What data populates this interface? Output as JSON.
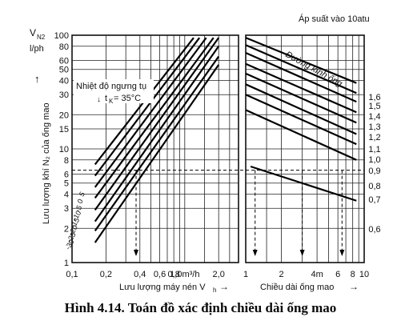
{
  "caption": "Hình 4.14. Toán đồ xác định chiều dài ống mao",
  "chart_data": {
    "type": "line",
    "y_axis": {
      "label_top": "V",
      "label_top_sub": "N2",
      "unit": "l/ph",
      "label": "Lưu lượng khí N₂ của ống mao",
      "scale": "log",
      "range": [
        1,
        100
      ],
      "ticks": [
        1,
        2,
        3,
        4,
        5,
        6,
        8,
        10,
        15,
        20,
        30,
        40,
        50,
        60,
        80,
        100
      ],
      "tick_labels": [
        "1",
        "2",
        "3",
        "4",
        "5",
        "6",
        "8",
        "10",
        "15",
        "20",
        "30",
        "40",
        "50",
        "60",
        "80",
        "100"
      ]
    },
    "left_panel": {
      "xlabel": "Lưu lượng máy nén V",
      "xlabel_sub": "h",
      "x_scale": "log",
      "x_range": [
        0.1,
        3
      ],
      "x_ticks": [
        0.1,
        0.2,
        0.4,
        0.6,
        0.8,
        1.0,
        2.0
      ],
      "x_tick_labels": [
        "0,1",
        "0,2",
        "0,4",
        "0,6",
        "0,8",
        "1,0m³/h",
        "2,0"
      ],
      "annotation_1": "Nhiệt độ ngưng tụ",
      "annotation_2": "t",
      "annotation_2_sub": "K",
      "annotation_2_rest": " = 35°C",
      "series": [
        {
          "name": "-30",
          "points": [
            [
              0.16,
              1.5
            ],
            [
              2.0,
              55
            ]
          ]
        },
        {
          "name": "-25",
          "points": [
            [
              0.16,
              1.9
            ],
            [
              2.0,
              65
            ]
          ]
        },
        {
          "name": "-20",
          "points": [
            [
              0.16,
              2.3
            ],
            [
              2.0,
              80
            ]
          ]
        },
        {
          "name": "-15",
          "points": [
            [
              0.16,
              2.9
            ],
            [
              2.0,
              95
            ]
          ]
        },
        {
          "name": "-10",
          "points": [
            [
              0.16,
              3.7
            ],
            [
              1.8,
              95
            ]
          ]
        },
        {
          "name": "-5",
          "points": [
            [
              0.16,
              4.6
            ],
            [
              1.55,
              95
            ]
          ]
        },
        {
          "name": "0",
          "points": [
            [
              0.16,
              5.8
            ],
            [
              1.35,
              95
            ]
          ]
        },
        {
          "name": "5",
          "points": [
            [
              0.16,
              7.3
            ],
            [
              1.2,
              95
            ]
          ]
        }
      ],
      "series_labels": [
        "5",
        "0",
        "-5",
        "-10",
        "-15",
        "-20",
        "-25",
        "-30"
      ],
      "example": {
        "x": 0.37,
        "y": 6.5
      }
    },
    "right_panel": {
      "title": "Áp suất vào 10atu",
      "xlabel": "Chiều dài ống mao",
      "x_scale": "log",
      "x_range": [
        1,
        10
      ],
      "x_ticks": [
        1,
        2,
        4,
        6,
        8,
        10
      ],
      "x_tick_labels": [
        "1",
        "2",
        "4m",
        "6",
        "8",
        "10"
      ],
      "series_title": "Đường kính ống",
      "series": [
        {
          "name": "1,6",
          "points": [
            [
              1,
              95
            ],
            [
              8.6,
              38
            ]
          ]
        },
        {
          "name": "1,5",
          "points": [
            [
              1,
              82
            ],
            [
              8.6,
              31
            ]
          ]
        },
        {
          "name": "1,4",
          "points": [
            [
              1,
              70
            ],
            [
              8.6,
              26
            ]
          ]
        },
        {
          "name": "1,3",
          "points": [
            [
              1,
              56
            ],
            [
              8.6,
              21
            ]
          ]
        },
        {
          "name": "1,2",
          "points": [
            [
              1,
              46
            ],
            [
              8.6,
              17
            ]
          ]
        },
        {
          "name": "1,1",
          "points": [
            [
              1,
              37
            ],
            [
              8.6,
              13.5
            ]
          ]
        },
        {
          "name": "1,0",
          "points": [
            [
              1,
              30
            ],
            [
              8.6,
              11
            ]
          ]
        },
        {
          "name": "0,9",
          "points": [
            [
              1,
              22
            ],
            [
              8.6,
              8
            ]
          ]
        },
        {
          "name": "0,8",
          "points": [
            [
              1.1,
              7
            ],
            [
              8.6,
              3.5
            ]
          ]
        }
      ],
      "right_scale_labels": [
        "1,6",
        "1,5",
        "1,4",
        "1,3",
        "1,2",
        "1,1",
        "1,0",
        "0,9",
        "0,8",
        "0,7",
        "0,6"
      ],
      "example_lengths": [
        1.2,
        3.0,
        6.5
      ]
    },
    "grid": true
  }
}
